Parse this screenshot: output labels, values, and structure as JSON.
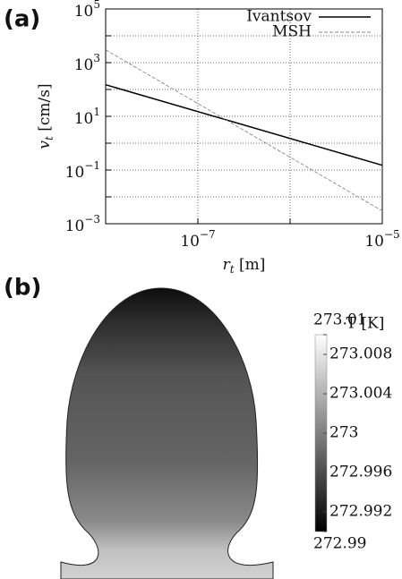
{
  "chart_data": [
    {
      "type": "line",
      "panel_label": "(a)",
      "xlabel": {
        "text": "r",
        "sub": "t",
        "unit": " [m]"
      },
      "ylabel": {
        "text": "v",
        "sub": "t",
        "unit": " [cm/s]"
      },
      "x": [
        1e-08,
        1e-05
      ],
      "series": [
        {
          "name": "Ivantsov",
          "color": "#000000",
          "dash": "solid",
          "values": [
            150,
            0.15
          ]
        },
        {
          "name": "MSH",
          "color": "#888888",
          "dash": "dashed",
          "values": [
            3000,
            0.003
          ]
        }
      ],
      "xscale": "log",
      "yscale": "log",
      "xlim": [
        1e-08,
        1e-05
      ],
      "ylim": [
        0.001,
        100000
      ],
      "xticks": [
        {
          "value": 1e-07,
          "label": "10",
          "exponent": "−7"
        },
        {
          "value": 1e-06,
          "label": null
        },
        {
          "value": 1e-05,
          "label": "10",
          "exponent": "−5"
        }
      ],
      "yticks": [
        {
          "value": 0.001,
          "label": "10",
          "exponent": "−3"
        },
        {
          "value": 0.01,
          "label": null
        },
        {
          "value": 0.1,
          "label": "10",
          "exponent": "−1"
        },
        {
          "value": 1,
          "label": null
        },
        {
          "value": 10,
          "label": "10",
          "exponent": "1"
        },
        {
          "value": 100,
          "label": null
        },
        {
          "value": 1000,
          "label": "10",
          "exponent": "3"
        },
        {
          "value": 10000,
          "label": null
        },
        {
          "value": 100000,
          "label": "10",
          "exponent": "5"
        }
      ],
      "grid": true,
      "legend": "upper right"
    },
    {
      "type": "heatmap",
      "panel_label": "(b)",
      "colorbar": {
        "title": "T [K]",
        "lim": [
          272.99,
          273.01
        ],
        "colors": [
          "#000000",
          "#ffffff"
        ],
        "ticks": [
          272.99,
          272.992,
          272.996,
          273,
          273.004,
          273.008,
          273.01
        ]
      }
    }
  ]
}
